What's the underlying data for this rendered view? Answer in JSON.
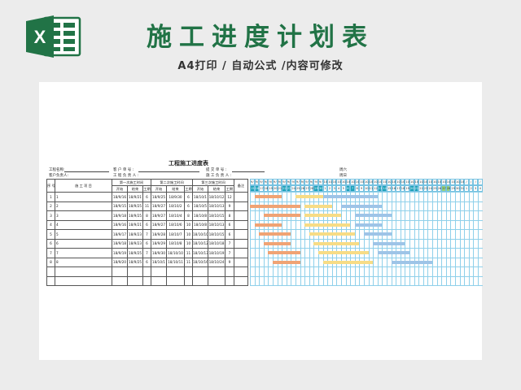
{
  "header": {
    "title": "施工进度计划表",
    "subtitle": "A4打印 / 自动公式 /内容可修改",
    "logo_letter": "X",
    "logo_icon": "excel-icon",
    "brand_color": "#217346"
  },
  "sheet": {
    "title": "工程施工进度表",
    "info": {
      "project_name": "工程名称:",
      "client_name": "客 户 单 号 :",
      "contract_no": "提 交 单 号 :",
      "week": "周六",
      "client_lead": "客户负责人:",
      "project_lead": "工 程 负 责 人 :",
      "construction_lead": "施 工 负 责 人 :",
      "week2": "周日"
    },
    "headers": {
      "seq": "序 号",
      "item": "施 工 项 目",
      "phase1": "第一次施工时间",
      "phase2": "第二次施工时间",
      "phase3": "第三次施工时间",
      "remark": "备注",
      "start": "开始",
      "end": "结束",
      "days": "工期"
    },
    "rows": [
      {
        "no": "1",
        "item": "1",
        "s1": "18/9/16",
        "e1": "18/9/21",
        "d1": "6",
        "s2": "18/9/25",
        "e2": "18/9/30",
        "d2": "6",
        "s3": "18/10/1",
        "e3": "18/10/12",
        "d3": "12"
      },
      {
        "no": "2",
        "item": "2",
        "s1": "18/9/15",
        "e1": "18/9/25",
        "d1": "11",
        "s2": "18/9/27",
        "e2": "18/10/2",
        "d2": "6",
        "s3": "18/10/5",
        "e3": "18/10/13",
        "d3": "9"
      },
      {
        "no": "3",
        "item": "3",
        "s1": "18/9/18",
        "e1": "18/9/25",
        "d1": "8",
        "s2": "18/9/27",
        "e2": "18/10/4",
        "d2": "8",
        "s3": "18/10/8",
        "e3": "18/10/15",
        "d3": "8"
      },
      {
        "no": "4",
        "item": "4",
        "s1": "18/9/16",
        "e1": "18/9/21",
        "d1": "6",
        "s2": "18/9/27",
        "e2": "18/10/6",
        "d2": "10",
        "s3": "18/10/8",
        "e3": "18/10/13",
        "d3": "6"
      },
      {
        "no": "5",
        "item": "5",
        "s1": "18/9/17",
        "e1": "18/9/23",
        "d1": "7",
        "s2": "18/9/28",
        "e2": "18/10/7",
        "d2": "10",
        "s3": "18/10/10",
        "e3": "18/10/15",
        "d3": "6"
      },
      {
        "no": "6",
        "item": "6",
        "s1": "18/9/18",
        "e1": "18/9/23",
        "d1": "6",
        "s2": "18/9/29",
        "e2": "18/10/8",
        "d2": "10",
        "s3": "18/10/12",
        "e3": "18/10/18",
        "d3": "7"
      },
      {
        "no": "7",
        "item": "7",
        "s1": "18/9/19",
        "e1": "18/9/25",
        "d1": "7",
        "s2": "18/9/30",
        "e2": "18/10/10",
        "d2": "11",
        "s3": "18/10/13",
        "e3": "18/10/19",
        "d3": "7"
      },
      {
        "no": "8",
        "item": "8",
        "s1": "18/9/20",
        "e1": "18/9/25",
        "d1": "6",
        "s2": "18/10/1",
        "e2": "18/10/11",
        "d2": "11",
        "s3": "18/10/16",
        "e3": "18/10/24",
        "d3": "9"
      }
    ],
    "gantt": {
      "start_date": "18/9/15",
      "day_numbers": [
        "15",
        "16",
        "17",
        "18",
        "19",
        "20",
        "21",
        "22",
        "23",
        "24",
        "25",
        "26",
        "27",
        "28",
        "29",
        "30",
        "1",
        "2",
        "3",
        "4",
        "5",
        "6",
        "7",
        "8",
        "9",
        "10",
        "11",
        "12",
        "13",
        "14",
        "15",
        "16",
        "17",
        "18",
        "19",
        "20",
        "21",
        "22",
        "23",
        "24",
        "25",
        "26",
        "27",
        "28",
        "29",
        "30",
        "31",
        "1",
        "2",
        "3",
        "4"
      ],
      "month_labels": [
        "9/",
        "9/",
        "9/",
        "9/",
        "9/",
        "9/",
        "9/",
        "9/",
        "9/",
        "9/",
        "9/",
        "9/",
        "9/",
        "9/",
        "9/",
        "9/",
        "10/",
        "10/",
        "10/",
        "10/",
        "10/",
        "10/",
        "10/",
        "10/",
        "10/",
        "10/",
        "10/",
        "10/",
        "10/",
        "10/",
        "10/",
        "10/",
        "10/",
        "10/",
        "10/",
        "10/",
        "10/",
        "10/",
        "10/",
        "10/",
        "10/",
        "10/",
        "10/",
        "10/",
        "10/",
        "10/",
        "10/",
        "/",
        "/",
        "/",
        "/"
      ],
      "weekend_teal": [
        0,
        1,
        7,
        8,
        14,
        15,
        21,
        22,
        28,
        29,
        35,
        36
      ],
      "weekend_green": [
        42,
        43
      ],
      "colors": {
        "phase1": "#f0a374",
        "phase2": "#f7dc86",
        "phase3": "#9ec4e7",
        "teal": "#1aa0b8",
        "green": "#9bd47a"
      }
    }
  }
}
